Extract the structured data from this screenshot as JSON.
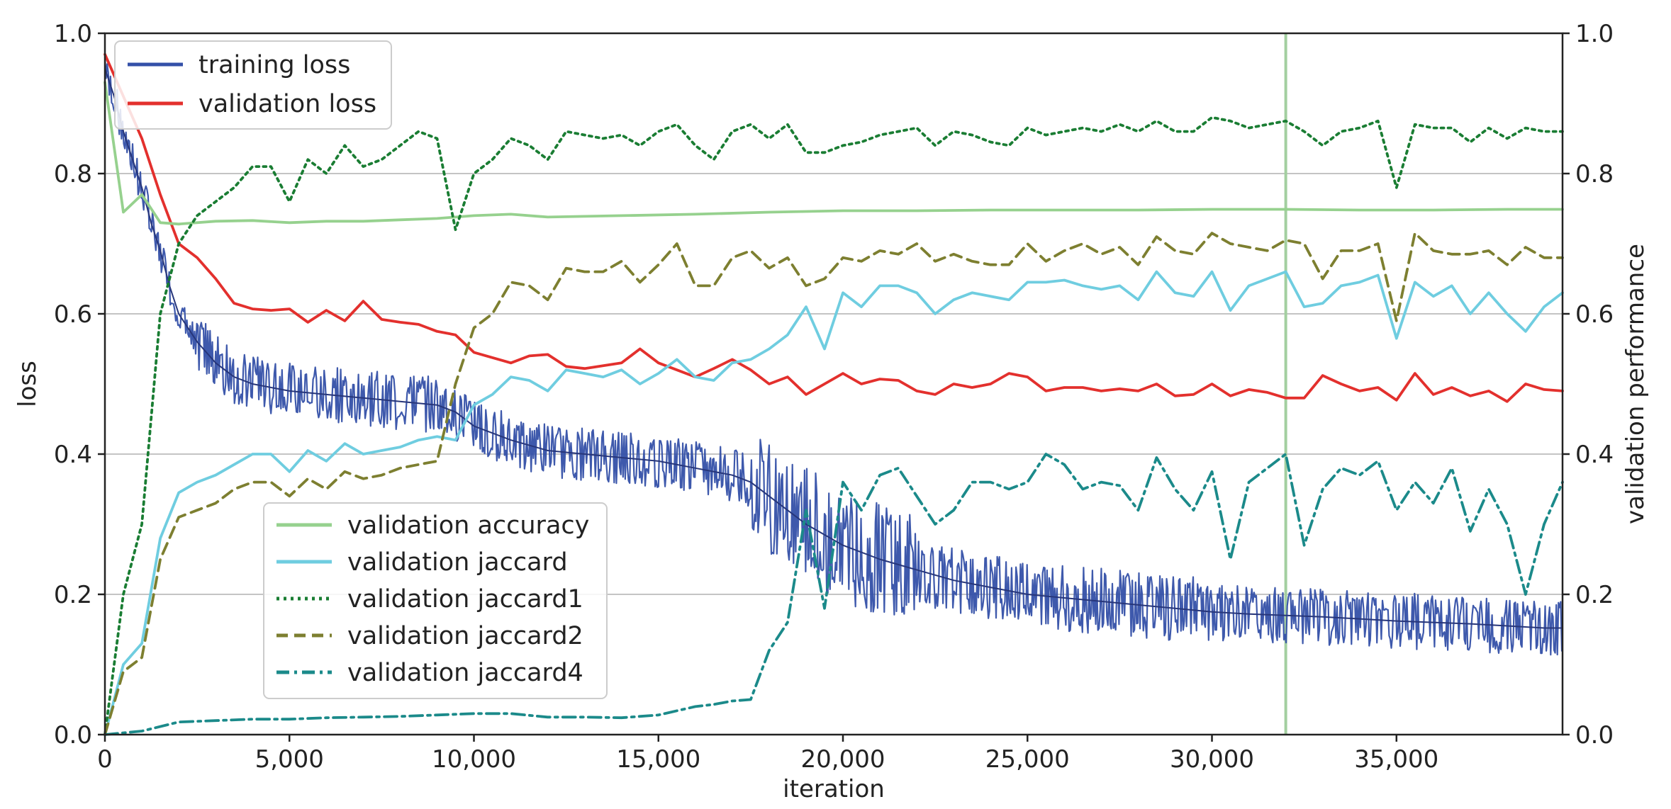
{
  "chart_data": {
    "type": "line",
    "title": "",
    "xlabel": "iteration",
    "ylabel": "loss",
    "y2label": "validation performance",
    "xlim": [
      0,
      39500
    ],
    "ylim": [
      0,
      1
    ],
    "y2lim": [
      0,
      1
    ],
    "xticks": [
      {
        "value": 0,
        "label": "0"
      },
      {
        "value": 5000,
        "label": "5,000"
      },
      {
        "value": 10000,
        "label": "10,000"
      },
      {
        "value": 15000,
        "label": "15,000"
      },
      {
        "value": 20000,
        "label": "20,000"
      },
      {
        "value": 25000,
        "label": "25,000"
      },
      {
        "value": 30000,
        "label": "30,000"
      },
      {
        "value": 35000,
        "label": "35,000"
      }
    ],
    "yticks": [
      {
        "value": 0,
        "label": "0.0"
      },
      {
        "value": 0.2,
        "label": "0.2"
      },
      {
        "value": 0.4,
        "label": "0.4"
      },
      {
        "value": 0.6,
        "label": "0.6"
      },
      {
        "value": 0.8,
        "label": "0.8"
      },
      {
        "value": 1.0,
        "label": "1.0"
      }
    ],
    "y2ticks": [
      {
        "value": 0,
        "label": "0.0"
      },
      {
        "value": 0.2,
        "label": "0.2"
      },
      {
        "value": 0.4,
        "label": "0.4"
      },
      {
        "value": 0.6,
        "label": "0.6"
      },
      {
        "value": 0.8,
        "label": "0.8"
      },
      {
        "value": 1.0,
        "label": "1.0"
      }
    ],
    "grid": "horizontal",
    "vline": {
      "x": 32000,
      "color": "#a3cfa0"
    },
    "legend_left": {
      "placement": "upper-left",
      "entries": [
        "training loss",
        "validation loss"
      ]
    },
    "legend_right": {
      "placement": "lower-center-left",
      "entries": [
        "validation accuracy",
        "validation jaccard",
        "validation jaccard1",
        "validation jaccard2",
        "validation jaccard4"
      ]
    },
    "series": [
      {
        "name": "training loss",
        "axis": "left",
        "color": "#3450a8",
        "style": "solid",
        "band": true,
        "x": [
          0,
          250,
          500,
          750,
          1000,
          1250,
          1500,
          1750,
          2000,
          2500,
          3000,
          3500,
          4000,
          5000,
          6000,
          7000,
          8000,
          9000,
          9500,
          10000,
          11000,
          12000,
          13000,
          14000,
          15000,
          16000,
          17000,
          17500,
          18000,
          18500,
          19000,
          19500,
          20000,
          21000,
          22000,
          23000,
          24000,
          25000,
          26000,
          27000,
          28000,
          29000,
          30000,
          31000,
          32000,
          33000,
          34000,
          35000,
          36000,
          37000,
          38000,
          39000,
          39500
        ],
        "y": [
          0.95,
          0.91,
          0.86,
          0.82,
          0.78,
          0.73,
          0.69,
          0.64,
          0.6,
          0.56,
          0.53,
          0.51,
          0.5,
          0.49,
          0.485,
          0.48,
          0.475,
          0.47,
          0.46,
          0.44,
          0.42,
          0.405,
          0.4,
          0.395,
          0.39,
          0.38,
          0.37,
          0.36,
          0.34,
          0.32,
          0.3,
          0.285,
          0.27,
          0.25,
          0.235,
          0.22,
          0.21,
          0.2,
          0.195,
          0.19,
          0.185,
          0.18,
          0.175,
          0.172,
          0.17,
          0.168,
          0.165,
          0.162,
          0.16,
          0.158,
          0.155,
          0.152,
          0.152
        ]
      },
      {
        "name": "validation loss",
        "axis": "left",
        "color": "#e3302d",
        "style": "solid",
        "x": [
          0,
          1000,
          1500,
          2000,
          2500,
          3000,
          3500,
          4000,
          4500,
          5000,
          5500,
          6000,
          6500,
          7000,
          7500,
          8000,
          8500,
          9000,
          9500,
          10000,
          11000,
          11500,
          12000,
          12500,
          13000,
          13500,
          14000,
          14500,
          15000,
          15500,
          16000,
          16500,
          17000,
          17500,
          18000,
          18500,
          19000,
          19500,
          20000,
          20500,
          21000,
          21500,
          22000,
          22500,
          23000,
          23500,
          24000,
          24500,
          25000,
          25500,
          26000,
          26500,
          27000,
          27500,
          28000,
          28500,
          29000,
          29500,
          30000,
          30500,
          31000,
          31500,
          32000,
          32500,
          33000,
          33500,
          34000,
          34500,
          35000,
          35500,
          36000,
          36500,
          37000,
          37500,
          38000,
          38500,
          39000,
          39500
        ],
        "y": [
          0.97,
          0.85,
          0.77,
          0.7,
          0.68,
          0.65,
          0.615,
          0.607,
          0.605,
          0.607,
          0.588,
          0.605,
          0.59,
          0.618,
          0.592,
          0.588,
          0.585,
          0.575,
          0.57,
          0.545,
          0.53,
          0.54,
          0.542,
          0.525,
          0.522,
          0.526,
          0.53,
          0.55,
          0.53,
          0.52,
          0.51,
          0.522,
          0.535,
          0.52,
          0.5,
          0.51,
          0.485,
          0.5,
          0.515,
          0.5,
          0.507,
          0.505,
          0.49,
          0.485,
          0.5,
          0.495,
          0.5,
          0.515,
          0.51,
          0.49,
          0.495,
          0.495,
          0.49,
          0.493,
          0.49,
          0.5,
          0.483,
          0.485,
          0.5,
          0.483,
          0.492,
          0.488,
          0.48,
          0.48,
          0.512,
          0.5,
          0.49,
          0.495,
          0.477,
          0.515,
          0.485,
          0.495,
          0.483,
          0.49,
          0.475,
          0.5,
          0.492,
          0.49
        ]
      },
      {
        "name": "validation accuracy",
        "axis": "right",
        "color": "#96d18e",
        "style": "solid",
        "x": [
          0,
          500,
          1000,
          1500,
          2000,
          3000,
          4000,
          5000,
          6000,
          7000,
          8000,
          9000,
          10000,
          11000,
          12000,
          14000,
          16000,
          18000,
          20000,
          22000,
          24000,
          26000,
          28000,
          30000,
          32000,
          34000,
          36000,
          38000,
          39500
        ],
        "y": [
          0.93,
          0.745,
          0.77,
          0.73,
          0.728,
          0.732,
          0.733,
          0.73,
          0.732,
          0.732,
          0.734,
          0.736,
          0.74,
          0.742,
          0.738,
          0.74,
          0.742,
          0.745,
          0.747,
          0.747,
          0.748,
          0.748,
          0.748,
          0.749,
          0.749,
          0.748,
          0.748,
          0.749,
          0.749
        ]
      },
      {
        "name": "validation jaccard",
        "axis": "right",
        "color": "#6fcde0",
        "style": "solid",
        "x": [
          0,
          500,
          1000,
          1500,
          2000,
          2500,
          3000,
          3500,
          4000,
          4500,
          5000,
          5500,
          6000,
          6500,
          7000,
          7500,
          8000,
          8500,
          9000,
          9500,
          10000,
          10500,
          11000,
          11500,
          12000,
          12500,
          13000,
          13500,
          14000,
          14500,
          15000,
          15500,
          16000,
          16500,
          17000,
          17500,
          18000,
          18500,
          19000,
          19500,
          20000,
          20500,
          21000,
          21500,
          22000,
          22500,
          23000,
          23500,
          24000,
          24500,
          25000,
          25500,
          26000,
          26500,
          27000,
          27500,
          28000,
          28500,
          29000,
          29500,
          30000,
          30500,
          31000,
          31500,
          32000,
          32500,
          33000,
          33500,
          34000,
          34500,
          35000,
          35500,
          36000,
          36500,
          37000,
          37500,
          38000,
          38500,
          39000,
          39500
        ],
        "y": [
          0.0,
          0.1,
          0.13,
          0.28,
          0.345,
          0.36,
          0.37,
          0.385,
          0.4,
          0.4,
          0.375,
          0.405,
          0.39,
          0.415,
          0.4,
          0.405,
          0.41,
          0.42,
          0.425,
          0.42,
          0.47,
          0.485,
          0.51,
          0.505,
          0.49,
          0.52,
          0.515,
          0.51,
          0.52,
          0.5,
          0.515,
          0.535,
          0.51,
          0.505,
          0.53,
          0.535,
          0.55,
          0.57,
          0.61,
          0.55,
          0.63,
          0.61,
          0.64,
          0.64,
          0.63,
          0.6,
          0.62,
          0.63,
          0.625,
          0.62,
          0.645,
          0.645,
          0.648,
          0.64,
          0.635,
          0.64,
          0.62,
          0.66,
          0.63,
          0.625,
          0.66,
          0.605,
          0.64,
          0.65,
          0.66,
          0.61,
          0.615,
          0.64,
          0.645,
          0.655,
          0.565,
          0.645,
          0.625,
          0.64,
          0.6,
          0.63,
          0.6,
          0.575,
          0.61,
          0.63
        ]
      },
      {
        "name": "validation jaccard1",
        "axis": "right",
        "color": "#1a7d33",
        "style": "dotted",
        "x": [
          0,
          500,
          1000,
          1500,
          2000,
          2500,
          3000,
          3500,
          4000,
          4500,
          5000,
          5500,
          6000,
          6500,
          7000,
          7500,
          8000,
          8500,
          9000,
          9500,
          10000,
          10500,
          11000,
          11500,
          12000,
          12500,
          13000,
          13500,
          14000,
          14500,
          15000,
          15500,
          16000,
          16500,
          17000,
          17500,
          18000,
          18500,
          19000,
          19500,
          20000,
          20500,
          21000,
          21500,
          22000,
          22500,
          23000,
          23500,
          24000,
          24500,
          25000,
          25500,
          26000,
          26500,
          27000,
          27500,
          28000,
          28500,
          29000,
          29500,
          30000,
          30500,
          31000,
          31500,
          32000,
          32500,
          33000,
          33500,
          34000,
          34500,
          35000,
          35500,
          36000,
          36500,
          37000,
          37500,
          38000,
          38500,
          39000,
          39500
        ],
        "y": [
          0.0,
          0.2,
          0.3,
          0.6,
          0.7,
          0.74,
          0.76,
          0.78,
          0.81,
          0.81,
          0.76,
          0.82,
          0.8,
          0.84,
          0.81,
          0.82,
          0.84,
          0.86,
          0.85,
          0.72,
          0.8,
          0.82,
          0.85,
          0.84,
          0.82,
          0.86,
          0.855,
          0.85,
          0.855,
          0.84,
          0.86,
          0.87,
          0.84,
          0.82,
          0.86,
          0.87,
          0.85,
          0.87,
          0.83,
          0.83,
          0.84,
          0.845,
          0.855,
          0.86,
          0.865,
          0.84,
          0.86,
          0.855,
          0.845,
          0.84,
          0.865,
          0.855,
          0.86,
          0.865,
          0.86,
          0.87,
          0.86,
          0.875,
          0.86,
          0.86,
          0.88,
          0.875,
          0.865,
          0.87,
          0.875,
          0.86,
          0.84,
          0.86,
          0.865,
          0.875,
          0.78,
          0.87,
          0.865,
          0.865,
          0.845,
          0.865,
          0.85,
          0.865,
          0.86,
          0.86
        ]
      },
      {
        "name": "validation jaccard2",
        "axis": "right",
        "color": "#7d7f30",
        "style": "dashed",
        "x": [
          0,
          500,
          1000,
          1500,
          2000,
          2500,
          3000,
          3500,
          4000,
          4500,
          5000,
          5500,
          6000,
          6500,
          7000,
          7500,
          8000,
          8500,
          9000,
          9500,
          10000,
          10500,
          11000,
          11500,
          12000,
          12500,
          13000,
          13500,
          14000,
          14500,
          15000,
          15500,
          16000,
          16500,
          17000,
          17500,
          18000,
          18500,
          19000,
          19500,
          20000,
          20500,
          21000,
          21500,
          22000,
          22500,
          23000,
          23500,
          24000,
          24500,
          25000,
          25500,
          26000,
          26500,
          27000,
          27500,
          28000,
          28500,
          29000,
          29500,
          30000,
          30500,
          31000,
          31500,
          32000,
          32500,
          33000,
          33500,
          34000,
          34500,
          35000,
          35500,
          36000,
          36500,
          37000,
          37500,
          38000,
          38500,
          39000,
          39500
        ],
        "y": [
          0.0,
          0.09,
          0.11,
          0.25,
          0.31,
          0.32,
          0.33,
          0.35,
          0.36,
          0.36,
          0.34,
          0.365,
          0.35,
          0.375,
          0.365,
          0.37,
          0.38,
          0.385,
          0.39,
          0.5,
          0.58,
          0.6,
          0.645,
          0.64,
          0.62,
          0.665,
          0.66,
          0.66,
          0.675,
          0.645,
          0.67,
          0.7,
          0.64,
          0.64,
          0.68,
          0.69,
          0.665,
          0.68,
          0.64,
          0.65,
          0.68,
          0.675,
          0.69,
          0.685,
          0.7,
          0.675,
          0.685,
          0.675,
          0.67,
          0.67,
          0.7,
          0.675,
          0.69,
          0.7,
          0.685,
          0.695,
          0.67,
          0.71,
          0.69,
          0.685,
          0.715,
          0.7,
          0.695,
          0.69,
          0.705,
          0.7,
          0.65,
          0.69,
          0.69,
          0.7,
          0.59,
          0.715,
          0.69,
          0.685,
          0.685,
          0.69,
          0.67,
          0.695,
          0.68,
          0.68
        ]
      },
      {
        "name": "validation jaccard4",
        "axis": "right",
        "color": "#1b8a8a",
        "style": "dashdot",
        "x": [
          0,
          1000,
          2000,
          3000,
          4000,
          5000,
          6000,
          7000,
          8000,
          9000,
          10000,
          11000,
          12000,
          13000,
          14000,
          15000,
          16000,
          16500,
          17000,
          17500,
          18000,
          18500,
          19000,
          19500,
          20000,
          20500,
          21000,
          21500,
          22000,
          22500,
          23000,
          23500,
          24000,
          24500,
          25000,
          25500,
          26000,
          26500,
          27000,
          27500,
          28000,
          28500,
          29000,
          29500,
          30000,
          30500,
          31000,
          31500,
          32000,
          32500,
          33000,
          33500,
          34000,
          34500,
          35000,
          35500,
          36000,
          36500,
          37000,
          37500,
          38000,
          38500,
          39000,
          39500
        ],
        "y": [
          0.0,
          0.005,
          0.018,
          0.02,
          0.022,
          0.022,
          0.024,
          0.025,
          0.026,
          0.028,
          0.03,
          0.03,
          0.025,
          0.025,
          0.024,
          0.028,
          0.04,
          0.043,
          0.048,
          0.05,
          0.12,
          0.16,
          0.32,
          0.18,
          0.36,
          0.32,
          0.37,
          0.38,
          0.34,
          0.3,
          0.32,
          0.36,
          0.36,
          0.35,
          0.36,
          0.4,
          0.385,
          0.35,
          0.36,
          0.355,
          0.32,
          0.395,
          0.35,
          0.32,
          0.375,
          0.25,
          0.36,
          0.38,
          0.4,
          0.27,
          0.35,
          0.38,
          0.37,
          0.39,
          0.32,
          0.36,
          0.33,
          0.38,
          0.29,
          0.35,
          0.3,
          0.2,
          0.3,
          0.36
        ]
      }
    ]
  }
}
